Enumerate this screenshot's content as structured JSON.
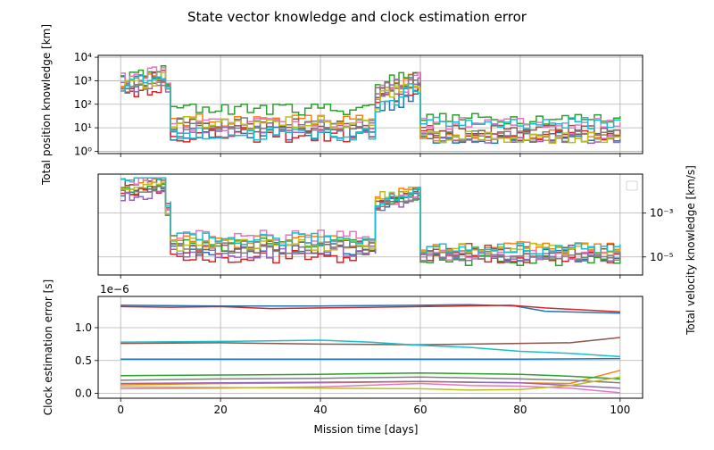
{
  "figure": {
    "title": "State vector knowledge and clock estimation error",
    "xlabel": "Mission time [days]"
  },
  "palette": [
    "#1f77b4",
    "#ff7f0e",
    "#2ca02c",
    "#d62728",
    "#9467bd",
    "#8c564b",
    "#e377c2",
    "#7f7f7f",
    "#bcbd22",
    "#17becf"
  ],
  "chart_data": [
    {
      "type": "line",
      "ylabel": "Total position knowledge [km]",
      "yscale": "log",
      "xlim": [
        -4.5,
        104.5
      ],
      "ylim": [
        0.8,
        12000
      ],
      "x_ticks": [
        0,
        20,
        40,
        60,
        80,
        100
      ],
      "y_ticks": [
        {
          "value": 1,
          "label": "10⁰"
        },
        {
          "value": 10,
          "label": "10¹"
        },
        {
          "value": 100,
          "label": "10²"
        },
        {
          "value": 1000,
          "label": "10³"
        },
        {
          "value": 10000,
          "label": "10⁴"
        }
      ],
      "grid": true,
      "series_count": 10,
      "phases": [
        {
          "x_start": 0,
          "x_end": 9,
          "value_range_approx": [
            150,
            8000
          ]
        },
        {
          "x_start": 9,
          "x_end": 10,
          "value_range_approx": [
            300,
            1000
          ]
        },
        {
          "x_start": 10,
          "x_end": 51,
          "value_range_approx": [
            2,
            100
          ]
        },
        {
          "x_start": 51,
          "x_end": 59.5,
          "value_range_approx": [
            15,
            2200
          ]
        },
        {
          "x_start": 60,
          "x_end": 100,
          "value_range_approx": [
            1.5,
            40
          ]
        }
      ]
    },
    {
      "type": "line",
      "ylabel": "Total velocity knowledge [km/s]",
      "yscale": "log",
      "yaxis_side": "right",
      "legend": "top-right",
      "xlim": [
        -4.5,
        104.5
      ],
      "ylim": [
        1.5e-06,
        0.06
      ],
      "x_ticks": [
        0,
        20,
        40,
        60,
        80,
        100
      ],
      "y_ticks": [
        {
          "value": 0.001,
          "label": "10⁻³"
        },
        {
          "value": 1e-05,
          "label": "10⁻⁵"
        }
      ],
      "grid": true,
      "series_count": 10,
      "phases": [
        {
          "x_start": 0,
          "x_end": 9,
          "value_range_approx": [
            0.003,
            0.04
          ]
        },
        {
          "x_start": 9,
          "x_end": 10,
          "value_range_approx": [
            0.0005,
            0.004
          ]
        },
        {
          "x_start": 10,
          "x_end": 51,
          "value_range_approx": [
            4e-06,
            0.0002
          ]
        },
        {
          "x_start": 51,
          "x_end": 59.5,
          "value_range_approx": [
            0.0007,
            0.015
          ]
        },
        {
          "x_start": 60,
          "x_end": 100,
          "value_range_approx": [
            3e-06,
            8e-05
          ]
        }
      ]
    },
    {
      "type": "line",
      "ylabel": "Clock estimation error [s]",
      "yscale": "linear",
      "offset_text": "1e−6",
      "xlim": [
        -4.5,
        104.5
      ],
      "ylim": [
        -7.35e-08,
        1.475e-06
      ],
      "x_ticks": [
        {
          "value": 0,
          "label": "0"
        },
        {
          "value": 20,
          "label": "20"
        },
        {
          "value": 40,
          "label": "40"
        },
        {
          "value": 60,
          "label": "60"
        },
        {
          "value": 80,
          "label": "80"
        },
        {
          "value": 100,
          "label": "100"
        }
      ],
      "y_ticks": [
        {
          "value": 0,
          "label": "0.0"
        },
        {
          "value": 5e-07,
          "label": "0.5"
        },
        {
          "value": 1e-06,
          "label": "1.0"
        }
      ],
      "grid": true,
      "series": [
        {
          "x": [
            0,
            20,
            40,
            60,
            70,
            79,
            85,
            100
          ],
          "values": [
            1.34e-06,
            1.33e-06,
            1.33e-06,
            1.34e-06,
            1.35e-06,
            1.33e-06,
            1.25e-06,
            1.22e-06
          ]
        },
        {
          "x": [
            0,
            20,
            40,
            60,
            70,
            80,
            90,
            100
          ],
          "values": [
            1.3e-07,
            1.5e-07,
            1.6e-07,
            1.8e-07,
            1.7e-07,
            1.6e-07,
            1.5e-07,
            3.5e-07
          ]
        },
        {
          "x": [
            0,
            20,
            40,
            60,
            70,
            80,
            90,
            100
          ],
          "values": [
            2.7e-07,
            2.8e-07,
            2.9e-07,
            3.1e-07,
            3e-07,
            2.9e-07,
            2.6e-07,
            2.2e-07
          ]
        },
        {
          "x": [
            0,
            10,
            20,
            30,
            40,
            60,
            78,
            85,
            100
          ],
          "values": [
            1.32e-06,
            1.31e-06,
            1.32e-06,
            1.29e-06,
            1.3e-06,
            1.32e-06,
            1.34e-06,
            1.3e-06,
            1.24e-06
          ]
        },
        {
          "x": [
            0,
            20,
            40,
            60,
            80,
            90,
            100
          ],
          "values": [
            1.5e-07,
            1.6e-07,
            1.7e-07,
            1.8e-07,
            1.6e-07,
            1.2e-07,
            8e-08
          ]
        },
        {
          "x": [
            0,
            20,
            40,
            60,
            70,
            80,
            90,
            100
          ],
          "values": [
            7.6e-07,
            7.7e-07,
            7.5e-07,
            7.4e-07,
            7.5e-07,
            7.6e-07,
            7.7e-07,
            8.5e-07
          ]
        },
        {
          "x": [
            0,
            20,
            40,
            60,
            70,
            80,
            90,
            100
          ],
          "values": [
            7e-08,
            8e-08,
            1e-07,
            1.5e-07,
            1.2e-07,
            1.1e-07,
            8e-08,
            1e-08
          ]
        },
        {
          "x": [
            0,
            20,
            40,
            60,
            80,
            90,
            100
          ],
          "values": [
            2e-07,
            2.2e-07,
            2.3e-07,
            2.5e-07,
            2.2e-07,
            2e-07,
            1.6e-07
          ]
        },
        {
          "x": [
            0,
            20,
            40,
            60,
            70,
            80,
            90,
            100
          ],
          "values": [
            1e-07,
            9e-08,
            8e-08,
            7e-08,
            5e-08,
            6e-08,
            1.2e-07,
            2.5e-07
          ]
        },
        {
          "x": [
            0,
            20,
            40,
            50,
            60,
            70,
            80,
            90,
            100
          ],
          "values": [
            7.8e-07,
            7.9e-07,
            8.1e-07,
            7.8e-07,
            7.3e-07,
            7e-07,
            6.4e-07,
            6.1e-07,
            5.6e-07
          ]
        },
        {
          "x": [
            0,
            20,
            40,
            60,
            80,
            100
          ],
          "values": [
            5.2e-07,
            5.2e-07,
            5.2e-07,
            5.2e-07,
            5.2e-07,
            5.3e-07
          ]
        }
      ]
    }
  ]
}
